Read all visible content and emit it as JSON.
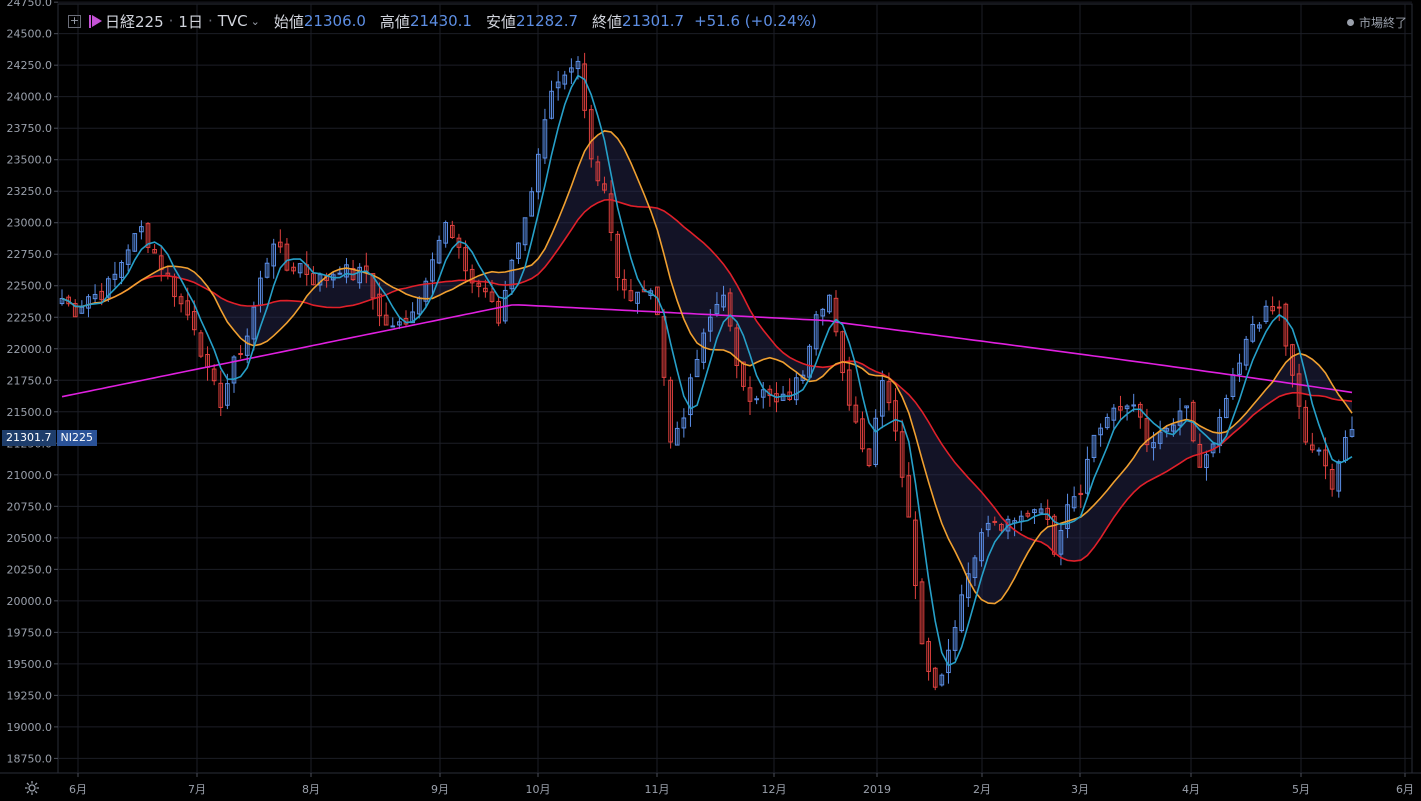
{
  "legend": {
    "symbol": "日経225",
    "interval": "1日",
    "source": "TVC",
    "open_label": "始値",
    "open": "21306.0",
    "high_label": "高値",
    "high": "21430.1",
    "low_label": "安値",
    "low": "21282.7",
    "close_label": "終値",
    "close": "21301.7",
    "change": "+51.6 (+0.24%)"
  },
  "status": {
    "text": "市場終了"
  },
  "last_price": {
    "value": "21301.7",
    "ticker": "NI225"
  },
  "colors": {
    "up": "#5b8ee6",
    "down": "#e0413f",
    "ma_fast": "#26a0c9",
    "ma_mid": "#f0a030",
    "ma_slow": "#e0202a",
    "ma_long": "#e020e0",
    "grid": "#1c1e26",
    "axis_text": "#9aa0ab"
  },
  "icons": {
    "settings": "gear-icon",
    "add": "plus-icon",
    "symbol_flag": "flag-icon"
  },
  "chart_data": {
    "type": "candlestick",
    "ylim": [
      18650,
      24750
    ],
    "y_ticks": [
      "24750.0",
      "24500.0",
      "24250.0",
      "24000.0",
      "23750.0",
      "23500.0",
      "23250.0",
      "23000.0",
      "22750.0",
      "22500.0",
      "22250.0",
      "22000.0",
      "21750.0",
      "21500.0",
      "21250.0",
      "21000.0",
      "20750.0",
      "20500.0",
      "20250.0",
      "20000.0",
      "19750.0",
      "19500.0",
      "19250.0",
      "19000.0",
      "18750.0"
    ],
    "x_ticks": [
      "6月",
      "7月",
      "8月",
      "9月",
      "10月",
      "11月",
      "12月",
      "2019",
      "2月",
      "3月",
      "4月",
      "5月",
      "6月"
    ],
    "series": [
      {
        "points": [
          {
            "v": 22400
          },
          {
            "v": 22300
          },
          {
            "v": 22420
          },
          {
            "v": 22440
          },
          {
            "v": 22580
          },
          {
            "v": 22810
          },
          {
            "v": 22950
          },
          {
            "v": 22760
          },
          {
            "v": 22560
          },
          {
            "v": 22350
          },
          {
            "v": 22190
          },
          {
            "v": 21800
          },
          {
            "v": 21580
          },
          {
            "v": 21880
          },
          {
            "v": 22110
          },
          {
            "v": 22540
          },
          {
            "v": 22870
          },
          {
            "v": 22630
          },
          {
            "v": 22670
          },
          {
            "v": 22550
          },
          {
            "v": 22560
          },
          {
            "v": 22650
          },
          {
            "v": 22580
          },
          {
            "v": 22620
          },
          {
            "v": 22250
          },
          {
            "v": 22150
          },
          {
            "v": 22240
          },
          {
            "v": 22410
          },
          {
            "v": 22760
          },
          {
            "v": 22980
          },
          {
            "v": 22750
          },
          {
            "v": 22530
          },
          {
            "v": 22460
          },
          {
            "v": 22210
          },
          {
            "v": 22730
          },
          {
            "v": 23010
          },
          {
            "v": 23570
          },
          {
            "v": 24000
          },
          {
            "v": 24120
          },
          {
            "v": 24250
          },
          {
            "v": 23500
          },
          {
            "v": 23280
          },
          {
            "v": 22600
          },
          {
            "v": 22360
          },
          {
            "v": 22480
          },
          {
            "v": 22330
          },
          {
            "v": 21250
          },
          {
            "v": 21500
          },
          {
            "v": 21920
          },
          {
            "v": 22240
          },
          {
            "v": 22470
          },
          {
            "v": 21820
          },
          {
            "v": 21640
          },
          {
            "v": 21650
          },
          {
            "v": 21560
          },
          {
            "v": 21630
          },
          {
            "v": 21830
          },
          {
            "v": 22320
          },
          {
            "v": 22420
          },
          {
            "v": 21770
          },
          {
            "v": 21420
          },
          {
            "v": 21100
          },
          {
            "v": 21800
          },
          {
            "v": 21380
          },
          {
            "v": 20630
          },
          {
            "v": 19700
          },
          {
            "v": 19300
          },
          {
            "v": 19620
          },
          {
            "v": 20050
          },
          {
            "v": 20400
          },
          {
            "v": 20620
          },
          {
            "v": 20580
          },
          {
            "v": 20610
          },
          {
            "v": 20700
          },
          {
            "v": 20780
          },
          {
            "v": 20420
          },
          {
            "v": 20800
          },
          {
            "v": 20900
          },
          {
            "v": 21320
          },
          {
            "v": 21450
          },
          {
            "v": 21510
          },
          {
            "v": 21600
          },
          {
            "v": 21220
          },
          {
            "v": 21290
          },
          {
            "v": 21400
          },
          {
            "v": 21500
          },
          {
            "v": 21060
          },
          {
            "v": 21210
          },
          {
            "v": 21600
          },
          {
            "v": 21870
          },
          {
            "v": 22200
          },
          {
            "v": 22280
          },
          {
            "v": 22310
          },
          {
            "v": 21760
          },
          {
            "v": 21260
          },
          {
            "v": 21150
          },
          {
            "v": 20940
          },
          {
            "v": 21300
          }
        ]
      }
    ]
  }
}
